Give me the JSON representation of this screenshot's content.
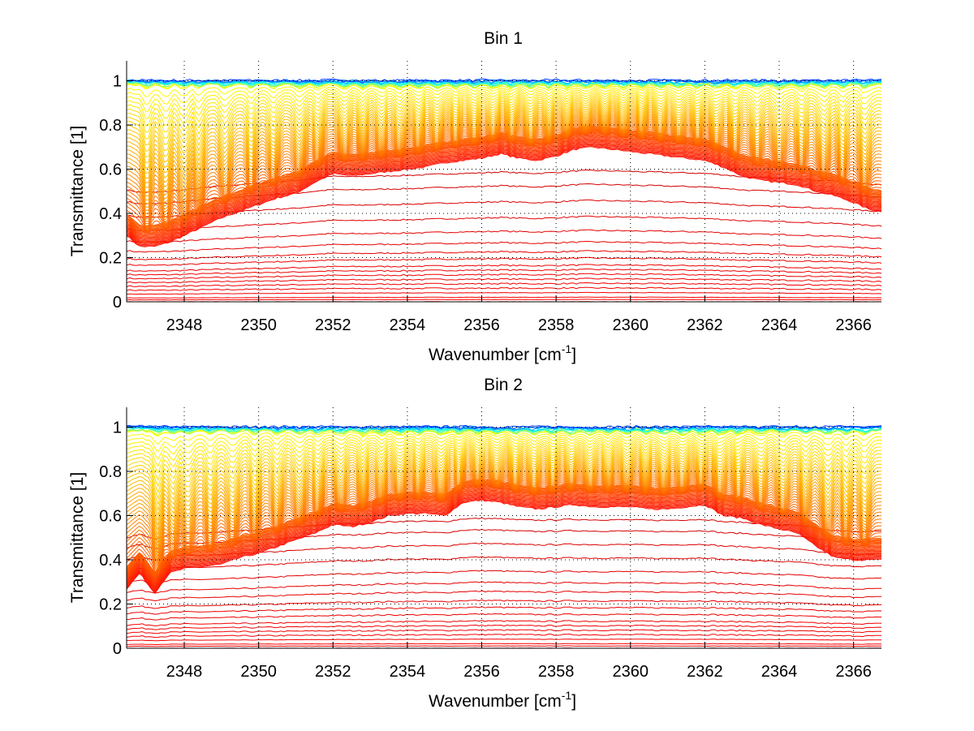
{
  "chart_data": [
    {
      "type": "line",
      "title": "Bin 1",
      "xlabel": "Wavenumber [cm^-1]",
      "xlabel_base": "Wavenumber [cm",
      "xlabel_sup": "-1",
      "xlabel_end": "]",
      "ylabel": "Transmittance [1]",
      "xlim": [
        2346.45,
        2366.75
      ],
      "ylim": [
        0,
        1.09
      ],
      "xticks": [
        2348,
        2350,
        2352,
        2354,
        2356,
        2358,
        2360,
        2362,
        2364,
        2366
      ],
      "xtick_labels": [
        "2348",
        "2350",
        "2352",
        "2354",
        "2356",
        "2358",
        "2360",
        "2362",
        "2364",
        "2366"
      ],
      "yticks": [
        0,
        0.2,
        0.4,
        0.6,
        0.8,
        1
      ],
      "ytick_labels": [
        "0",
        "0.2",
        "0.4",
        "0.6",
        "0.8",
        "1"
      ],
      "grid": "dotted",
      "legend": "none",
      "colormap": "jet (dark red = lowest transmittance, blue = highest)",
      "series_count_approx": 100,
      "x": [
        2346.45,
        2346.8,
        2347.2,
        2347.6,
        2348.0,
        2348.5,
        2349.0,
        2349.5,
        2350.0,
        2350.5,
        2351.0,
        2351.5,
        2352.0,
        2352.5,
        2353.0,
        2353.5,
        2354.0,
        2354.5,
        2355.0,
        2355.5,
        2356.0,
        2356.5,
        2357.0,
        2357.5,
        2358.0,
        2358.5,
        2359.0,
        2359.5,
        2360.0,
        2360.5,
        2361.0,
        2361.5,
        2362.0,
        2362.5,
        2363.0,
        2363.5,
        2364.0,
        2364.5,
        2365.0,
        2365.5,
        2366.0,
        2366.4,
        2366.75
      ],
      "dense_band_profile": [
        0.36,
        0.31,
        0.31,
        0.33,
        0.36,
        0.4,
        0.44,
        0.47,
        0.5,
        0.53,
        0.55,
        0.6,
        0.64,
        0.63,
        0.64,
        0.65,
        0.66,
        0.67,
        0.69,
        0.7,
        0.71,
        0.73,
        0.71,
        0.7,
        0.72,
        0.75,
        0.76,
        0.75,
        0.74,
        0.73,
        0.72,
        0.71,
        0.7,
        0.67,
        0.63,
        0.61,
        0.6,
        0.59,
        0.56,
        0.54,
        0.51,
        0.48,
        0.47
      ],
      "absorption_lines": [
        2347.0,
        2347.5,
        2348.0,
        2348.4,
        2349.1,
        2349.8,
        2350.4,
        2351.1,
        2351.6,
        2352.3,
        2352.8,
        2353.3,
        2353.8,
        2354.3,
        2354.8,
        2355.3,
        2355.8,
        2356.3,
        2356.8,
        2357.3,
        2357.8,
        2358.3,
        2358.8,
        2359.3,
        2359.8,
        2360.3,
        2360.8,
        2361.3,
        2361.8,
        2362.3,
        2362.8,
        2363.4,
        2364.0,
        2364.6,
        2365.2,
        2365.7,
        2366.3
      ],
      "low_curve_levels": [
        0.0,
        0.01,
        0.02,
        0.04,
        0.06,
        0.08,
        0.1,
        0.12,
        0.14,
        0.16,
        0.19,
        0.22,
        0.26,
        0.31,
        0.37,
        0.44,
        0.51,
        0.57
      ]
    },
    {
      "type": "line",
      "title": "Bin 2",
      "xlabel": "Wavenumber [cm^-1]",
      "xlabel_base": "Wavenumber [cm",
      "xlabel_sup": "-1",
      "xlabel_end": "]",
      "ylabel": "Transmittance [1]",
      "xlim": [
        2346.45,
        2366.75
      ],
      "ylim": [
        0,
        1.09
      ],
      "xticks": [
        2348,
        2350,
        2352,
        2354,
        2356,
        2358,
        2360,
        2362,
        2364,
        2366
      ],
      "xtick_labels": [
        "2348",
        "2350",
        "2352",
        "2354",
        "2356",
        "2358",
        "2360",
        "2362",
        "2364",
        "2366"
      ],
      "yticks": [
        0,
        0.2,
        0.4,
        0.6,
        0.8,
        1
      ],
      "ytick_labels": [
        "0",
        "0.2",
        "0.4",
        "0.6",
        "0.8",
        "1"
      ],
      "grid": "dotted",
      "legend": "none",
      "colormap": "jet (dark red = lowest transmittance, blue = highest)",
      "series_count_approx": 100,
      "x": [
        2346.45,
        2346.8,
        2347.2,
        2347.6,
        2348.0,
        2348.5,
        2349.0,
        2349.5,
        2350.0,
        2350.5,
        2351.0,
        2351.5,
        2352.0,
        2352.5,
        2353.0,
        2353.5,
        2354.0,
        2354.5,
        2355.0,
        2355.5,
        2356.0,
        2356.5,
        2357.0,
        2357.5,
        2358.0,
        2358.5,
        2359.0,
        2359.5,
        2360.0,
        2360.5,
        2361.0,
        2361.5,
        2362.0,
        2362.5,
        2363.0,
        2363.5,
        2364.0,
        2364.5,
        2365.0,
        2365.5,
        2366.0,
        2366.4,
        2366.75
      ],
      "dense_band_profile": [
        0.33,
        0.4,
        0.31,
        0.4,
        0.42,
        0.43,
        0.44,
        0.47,
        0.49,
        0.52,
        0.55,
        0.58,
        0.62,
        0.61,
        0.63,
        0.66,
        0.67,
        0.67,
        0.66,
        0.72,
        0.73,
        0.72,
        0.7,
        0.69,
        0.7,
        0.71,
        0.7,
        0.7,
        0.7,
        0.69,
        0.69,
        0.7,
        0.71,
        0.66,
        0.65,
        0.62,
        0.6,
        0.58,
        0.52,
        0.47,
        0.46,
        0.46,
        0.46
      ],
      "absorption_lines": [
        2347.3,
        2347.7,
        2348.1,
        2348.7,
        2349.3,
        2349.9,
        2350.5,
        2351.1,
        2351.6,
        2352.2,
        2352.8,
        2353.3,
        2353.8,
        2354.3,
        2354.9,
        2355.4,
        2355.9,
        2356.4,
        2356.9,
        2357.4,
        2357.9,
        2358.4,
        2358.9,
        2359.4,
        2359.9,
        2360.4,
        2360.9,
        2361.4,
        2361.9,
        2362.4,
        2362.9,
        2363.5,
        2364.1,
        2364.7,
        2365.3,
        2365.8,
        2366.3
      ],
      "low_curve_levels": [
        0.0,
        0.01,
        0.02,
        0.04,
        0.06,
        0.08,
        0.1,
        0.12,
        0.15,
        0.18,
        0.21,
        0.25,
        0.29,
        0.34,
        0.4,
        0.46,
        0.52,
        0.57
      ]
    }
  ]
}
